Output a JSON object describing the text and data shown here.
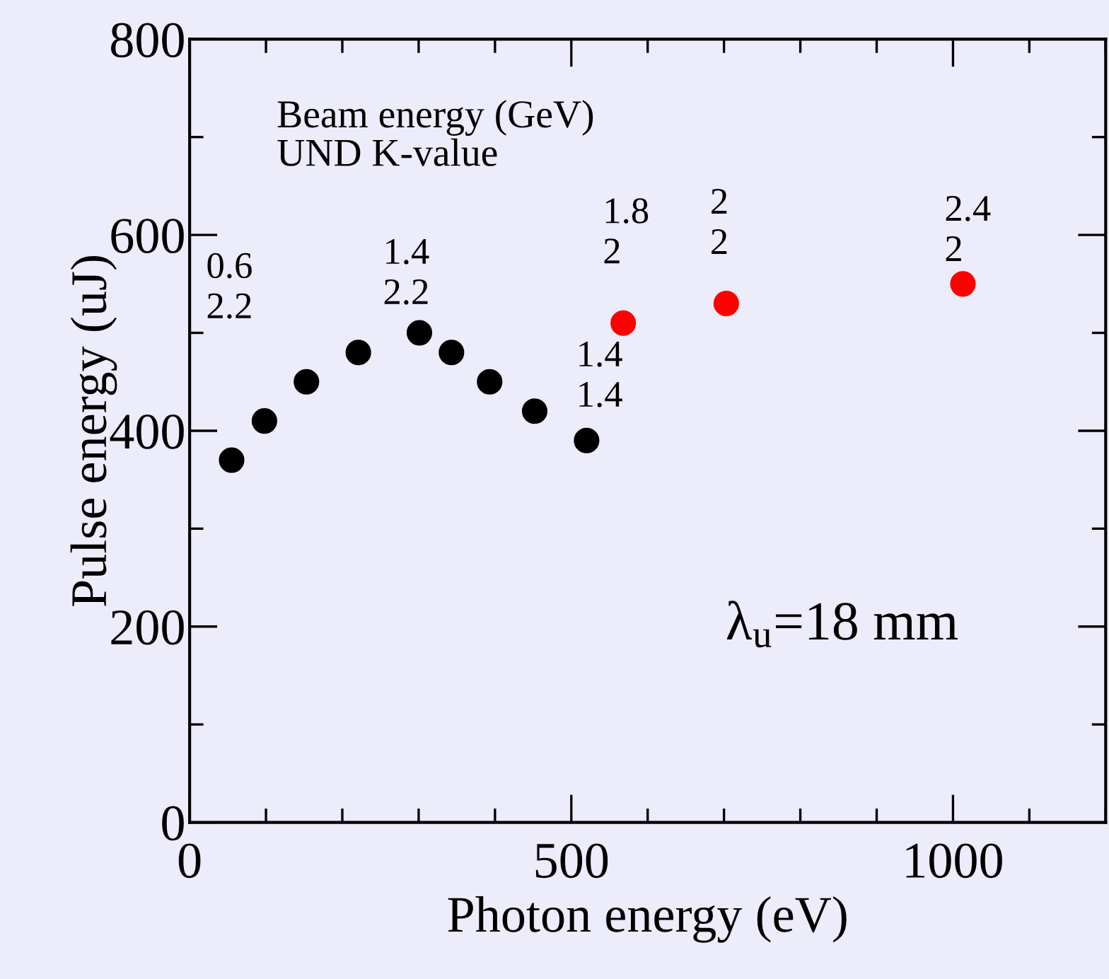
{
  "chart_data": {
    "type": "scatter",
    "xlabel": "Photon energy (eV)",
    "ylabel": "Pulse energy (uJ)",
    "xlim": [
      0,
      1200
    ],
    "ylim": [
      0,
      800
    ],
    "xticks": [
      0,
      500,
      1000
    ],
    "yticks": [
      0,
      200,
      400,
      600,
      800
    ],
    "grid": false,
    "legend": false,
    "marker": "circle",
    "series": [
      {
        "color": "#000000",
        "x": [
          55,
          98,
          153,
          221,
          301,
          343,
          393,
          452,
          520
        ],
        "values": [
          370,
          410,
          450,
          480,
          500,
          480,
          450,
          420,
          390
        ]
      },
      {
        "color": "#ff0000",
        "x": [
          568,
          703,
          1013
        ],
        "values": [
          510,
          530,
          550
        ]
      }
    ],
    "annotations": [
      "Beam energy (GeV)\nUND K-value",
      "λ$_{u}$=18 mm",
      "0.6\n2.2",
      "1.4\n2.2",
      "1.4\n1.4",
      "1.8\n2",
      "2\n2",
      "2.4\n2"
    ]
  }
}
